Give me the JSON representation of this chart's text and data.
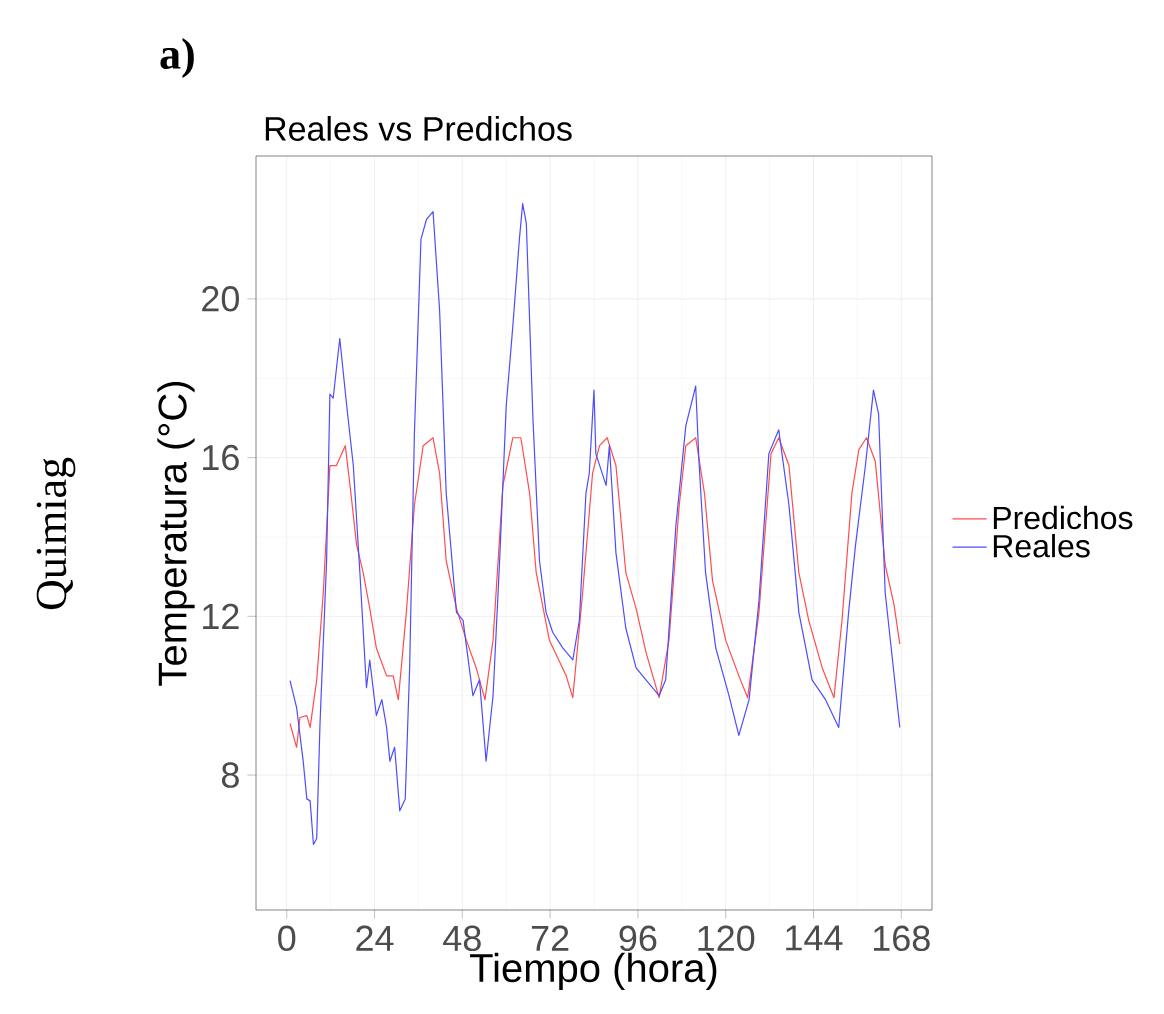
{
  "chart_data": {
    "type": "line",
    "title": "Reales vs Predichos",
    "xlabel": "Tiempo (hora)",
    "ylabel": "Temperatura (°C)",
    "annotations": [
      "a)",
      "Quimiag"
    ],
    "xlim": [
      -8.4,
      176.4
    ],
    "ylim": [
      4.6,
      23.6
    ],
    "xticks": [
      0,
      24,
      48,
      72,
      96,
      120,
      144,
      168
    ],
    "yticks": [
      8,
      12,
      16,
      20
    ],
    "grid": true,
    "legend": "right",
    "line_style": "solid",
    "series": [
      {
        "name": "Predichos",
        "color": "#ff4d4d",
        "x": [
          0.9,
          2.7,
          3.6,
          5.5,
          6.4,
          8.2,
          10,
          11.8,
          13.6,
          16,
          17.3,
          19.1,
          20.9,
          22.7,
          24.5,
          27.3,
          29.1,
          30.5,
          32.7,
          34.9,
          37.3,
          40,
          41.8,
          43.6,
          46.4,
          49.1,
          51.8,
          54.2,
          56.4,
          59.1,
          61.8,
          64,
          66.4,
          68.2,
          71.8,
          76.4,
          78.2,
          80.9,
          83.6,
          85.5,
          87.6,
          90,
          92.7,
          95.5,
          98.2,
          101.8,
          104.5,
          107.3,
          109.1,
          111.8,
          114.2,
          116.4,
          120,
          123.6,
          126,
          129.1,
          132.4,
          134.5,
          137.3,
          140,
          142.7,
          146.4,
          149.6,
          151.8,
          154.5,
          156.4,
          158.5,
          160.9,
          163.6,
          166,
          167.6
        ],
        "values": [
          9.3,
          8.7,
          9.45,
          9.5,
          9.2,
          10.4,
          12.6,
          15.8,
          15.8,
          16.3,
          15.3,
          13.8,
          13.1,
          12.2,
          11.2,
          10.5,
          10.5,
          9.9,
          12.1,
          14.8,
          16.3,
          16.5,
          15.6,
          13.4,
          12.2,
          11.4,
          10.7,
          9.9,
          11.4,
          15.3,
          16.5,
          16.5,
          15.1,
          13.1,
          11.4,
          10.5,
          9.95,
          12.6,
          15.6,
          16.3,
          16.5,
          15.8,
          13.1,
          12.2,
          11.1,
          9.95,
          11.4,
          14.8,
          16.3,
          16.5,
          15.1,
          12.9,
          11.4,
          10.5,
          9.95,
          12.1,
          16.1,
          16.5,
          15.8,
          13.1,
          11.9,
          10.7,
          9.95,
          11.9,
          15.1,
          16.2,
          16.5,
          15.9,
          13.3,
          12.3,
          11.3
        ]
      },
      {
        "name": "Reales",
        "color": "#4d4dff",
        "x": [
          0.9,
          2.7,
          4.5,
          5.5,
          6.4,
          7.3,
          8.2,
          9.1,
          10.9,
          11.8,
          12.7,
          14.5,
          16.4,
          18.2,
          20,
          21.8,
          22.7,
          24.5,
          26,
          27.3,
          28.2,
          29.5,
          30.9,
          32.4,
          33.6,
          34.9,
          36.7,
          38.2,
          40,
          41.8,
          43.6,
          46.4,
          48.2,
          50.9,
          52.7,
          54.5,
          56.4,
          58.2,
          60,
          61.8,
          63.6,
          64.5,
          65.5,
          67.3,
          69.1,
          70.9,
          72.7,
          75.5,
          78.2,
          80,
          81.8,
          82.7,
          84,
          84.5,
          87.3,
          88.2,
          90,
          92.7,
          95.5,
          98.2,
          101.8,
          103.6,
          106.4,
          109.1,
          111.8,
          112.7,
          114.5,
          117.3,
          120.9,
          123.6,
          126.4,
          129.1,
          131.8,
          134.5,
          137.3,
          140,
          143.6,
          147.3,
          150.9,
          153.6,
          155.5,
          158.2,
          160.4,
          161.8,
          163.6,
          167.6
        ],
        "values": [
          10.38,
          9.7,
          8.35,
          7.4,
          7.35,
          6.25,
          6.4,
          9.3,
          13.4,
          17.6,
          17.5,
          19.0,
          17.3,
          15.8,
          13.1,
          10.2,
          10.9,
          9.5,
          9.9,
          9.2,
          8.35,
          8.7,
          7.1,
          7.4,
          10.7,
          16.6,
          21.5,
          22.0,
          22.2,
          19.7,
          15.1,
          12.1,
          11.9,
          10.0,
          10.4,
          8.35,
          10.0,
          13.4,
          17.3,
          19.3,
          21.5,
          22.4,
          21.9,
          17.0,
          13.4,
          12.1,
          11.6,
          11.2,
          10.9,
          11.9,
          15.1,
          15.6,
          17.7,
          16.1,
          15.3,
          16.3,
          13.6,
          11.7,
          10.7,
          10.4,
          10.0,
          10.4,
          14.3,
          16.8,
          17.8,
          15.9,
          13.1,
          11.2,
          10.0,
          9.0,
          9.9,
          12.4,
          16.1,
          16.7,
          14.8,
          12.1,
          10.4,
          9.9,
          9.2,
          12.1,
          13.8,
          15.8,
          17.7,
          17.1,
          12.6,
          9.2
        ]
      }
    ]
  }
}
